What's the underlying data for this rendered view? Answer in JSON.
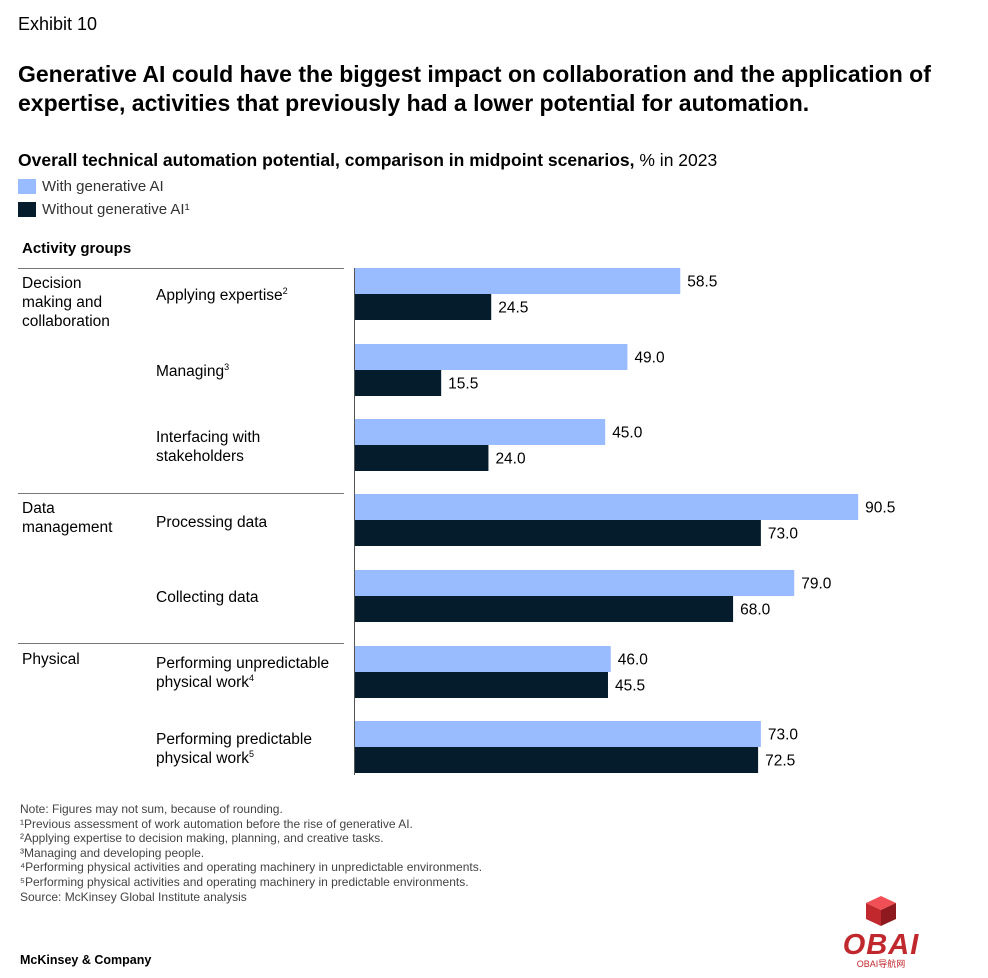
{
  "exhibit": "Exhibit 10",
  "headline": "Generative AI could have the biggest impact on collaboration and the application of expertise, activities that previously had a lower potential for automation.",
  "subtitle": {
    "bold": "Overall technical automation potential, comparison in midpoint scenarios,",
    "normal": " % in 2023"
  },
  "legend": [
    {
      "label": "With generative AI",
      "color": "#99bbff"
    },
    {
      "label": "Without generative AI¹",
      "color": "#051c2c"
    }
  ],
  "column_header": "Activity groups",
  "groups": [
    {
      "label": "Decision making and collaboration"
    },
    {
      "label": "Data management"
    },
    {
      "label": "Physical"
    }
  ],
  "items": [
    {
      "label": "Applying expertise",
      "sup": "2"
    },
    {
      "label": "Managing",
      "sup": "3"
    },
    {
      "label": "Interfacing with stakeholders",
      "sup": ""
    },
    {
      "label": "Processing data",
      "sup": ""
    },
    {
      "label": "Collecting data",
      "sup": ""
    },
    {
      "label": "Performing unpredictable physical work",
      "sup": "4"
    },
    {
      "label": "Performing predictable physical work",
      "sup": "5"
    }
  ],
  "chart_data": {
    "type": "bar",
    "orientation": "horizontal",
    "categories": [
      "Applying expertise",
      "Managing",
      "Interfacing with stakeholders",
      "Processing data",
      "Collecting data",
      "Performing unpredictable physical work",
      "Performing predictable physical work"
    ],
    "series": [
      {
        "name": "With generative AI",
        "color": "#99bbff",
        "values": [
          58.5,
          49.0,
          45.0,
          90.5,
          79.0,
          46.0,
          73.0
        ]
      },
      {
        "name": "Without generative AI¹",
        "color": "#051c2c",
        "values": [
          24.5,
          15.5,
          24.0,
          73.0,
          68.0,
          45.5,
          72.5
        ]
      }
    ],
    "value_labels": {
      "With generative AI": [
        "58.5",
        "49.0",
        "45.0",
        "90.5",
        "79.0",
        "46.0",
        "73.0"
      ],
      "Without generative AI¹": [
        "24.5",
        "15.5",
        "24.0",
        "73.0",
        "68.0",
        "45.5",
        "72.5"
      ]
    },
    "xlim": [
      0,
      100
    ]
  },
  "footnotes": [
    "Note: Figures may not sum, because of rounding.",
    "¹Previous assessment of work automation before the rise of generative AI.",
    "²Applying expertise to decision making, planning, and creative tasks.",
    "³Managing and developing people.",
    "⁴Performing physical activities and operating machinery in unpredictable environments.",
    "⁵Performing physical activities and operating machinery in predictable environments.",
    "Source: McKinsey Global Institute analysis"
  ],
  "brand": "McKinsey & Company",
  "watermark": {
    "text": "OBAI",
    "subtext": "OBAI导航网",
    "color": "#c0282d"
  }
}
